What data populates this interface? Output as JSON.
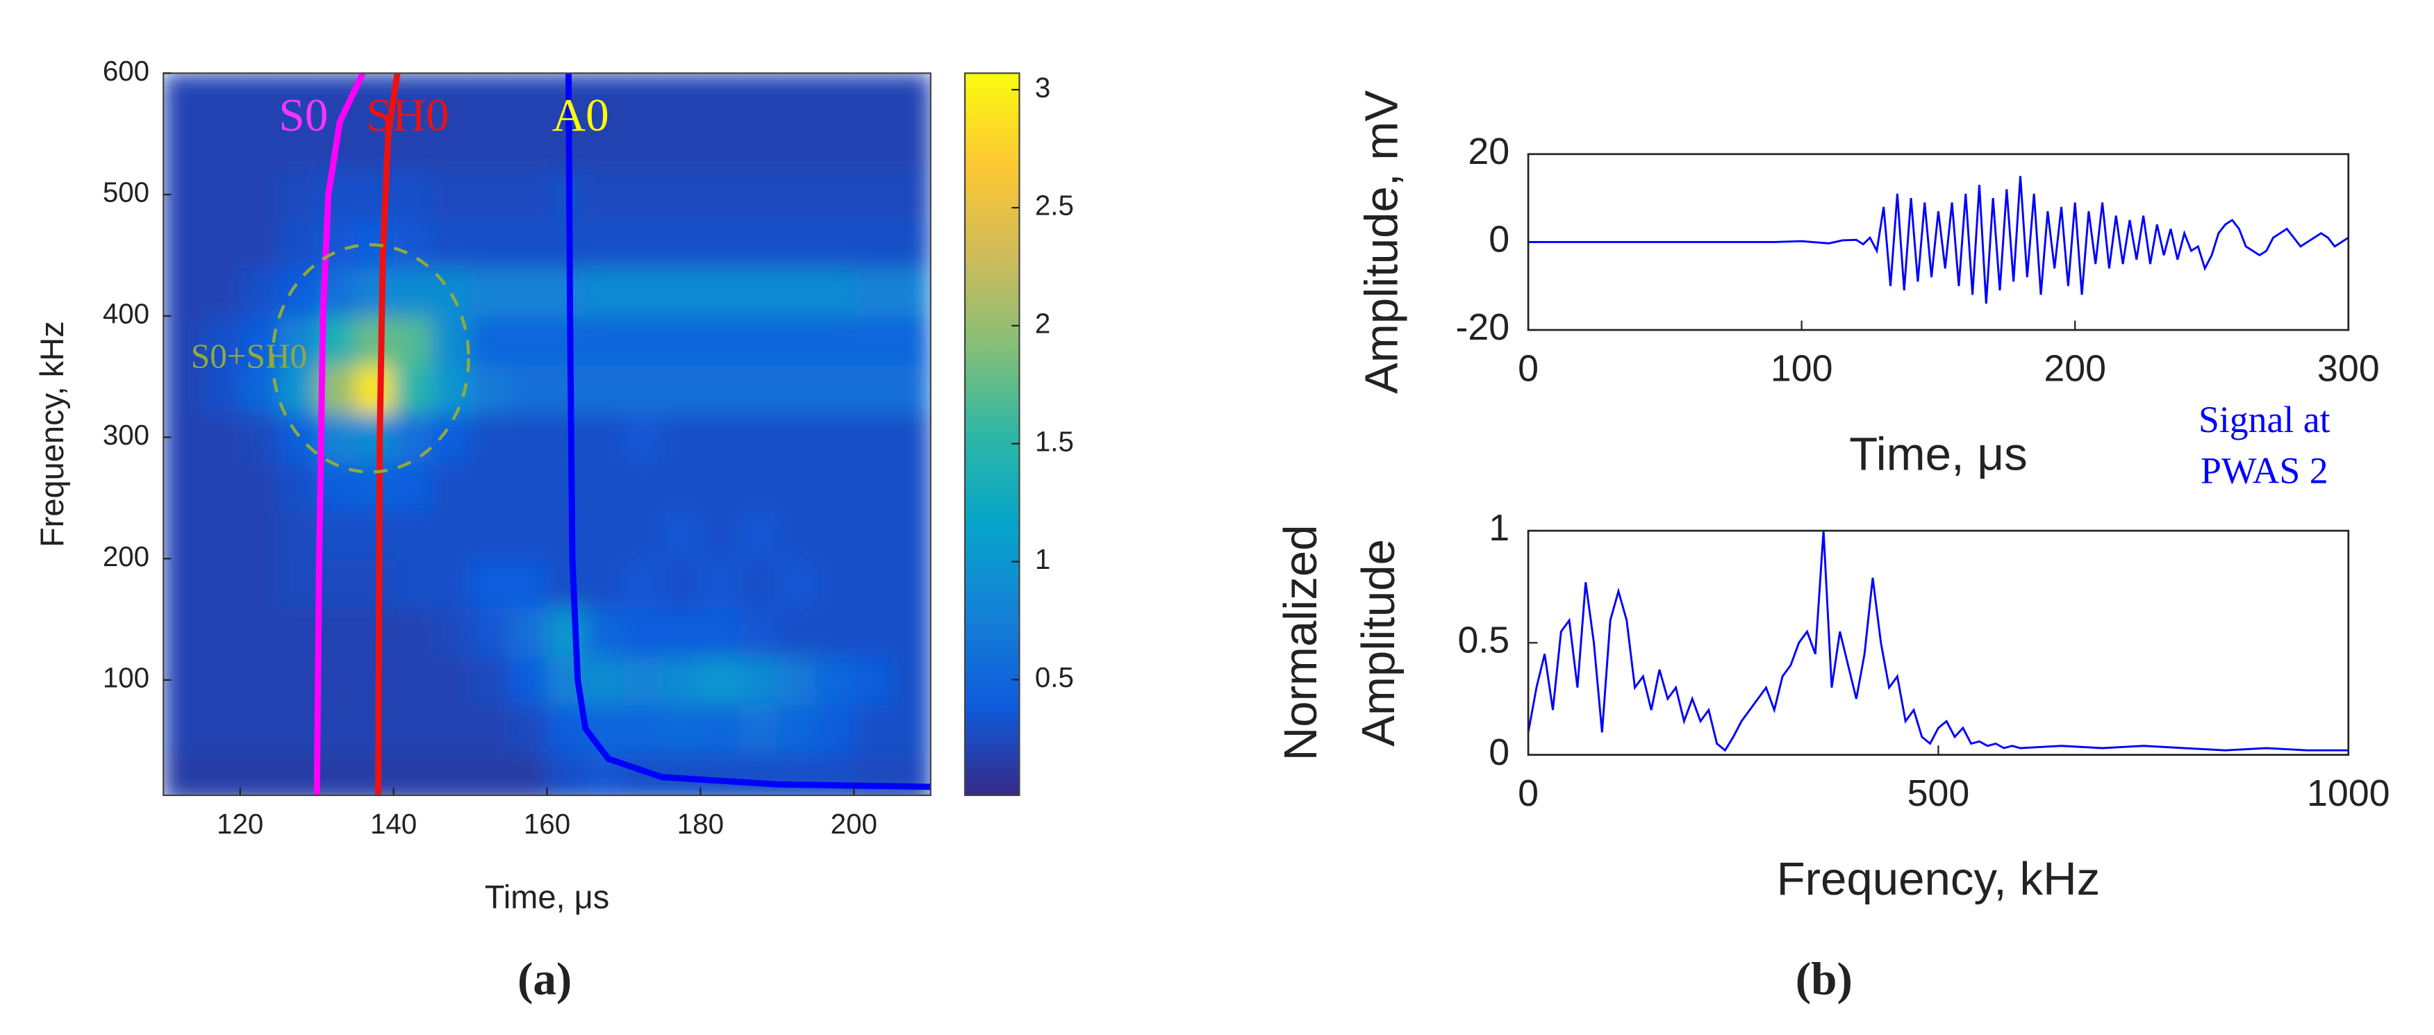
{
  "captions": [
    "(a)",
    "(b)"
  ],
  "chart_data": [
    {
      "type": "heatmap",
      "xlabel": "Time, μs",
      "ylabel": "Frequency, kHz",
      "xlim": [
        110,
        210
      ],
      "ylim": [
        5,
        600
      ],
      "xticks": [
        120,
        140,
        160,
        180,
        200
      ],
      "yticks": [
        100,
        200,
        300,
        400,
        500,
        600
      ],
      "x": [
        112.5,
        117.5,
        122.5,
        127.5,
        132.5,
        137.5,
        142.5,
        147.5,
        152.5,
        157.5,
        162.5,
        167.5,
        172.5,
        177.5,
        182.5,
        187.5,
        192.5,
        197.5,
        202.5,
        207.5
      ],
      "y": [
        20,
        60,
        100,
        140,
        180,
        220,
        260,
        300,
        340,
        380,
        420,
        460,
        500,
        540,
        580
      ],
      "z": [
        [
          0.15,
          0.15,
          0.15,
          0.15,
          0.15,
          0.15,
          0.15,
          0.15,
          0.15,
          0.15,
          0.3,
          0.35,
          0.3,
          0.3,
          0.3,
          0.3,
          0.3,
          0.3,
          0.25,
          0.25
        ],
        [
          0.2,
          0.2,
          0.2,
          0.2,
          0.2,
          0.2,
          0.2,
          0.2,
          0.2,
          0.25,
          0.4,
          0.5,
          0.5,
          0.55,
          0.5,
          0.6,
          0.5,
          0.4,
          0.3,
          0.3
        ],
        [
          0.2,
          0.2,
          0.2,
          0.2,
          0.2,
          0.2,
          0.2,
          0.2,
          0.25,
          0.4,
          0.8,
          0.9,
          0.8,
          0.9,
          1.0,
          0.9,
          0.7,
          0.5,
          0.4,
          0.3
        ],
        [
          0.2,
          0.2,
          0.2,
          0.2,
          0.2,
          0.2,
          0.2,
          0.25,
          0.35,
          0.6,
          1.0,
          0.5,
          0.4,
          0.4,
          0.4,
          0.35,
          0.3,
          0.3,
          0.3,
          0.3
        ],
        [
          0.2,
          0.2,
          0.2,
          0.25,
          0.25,
          0.25,
          0.3,
          0.3,
          0.4,
          0.4,
          0.3,
          0.3,
          0.35,
          0.3,
          0.35,
          0.3,
          0.35,
          0.3,
          0.3,
          0.3
        ],
        [
          0.2,
          0.2,
          0.2,
          0.25,
          0.3,
          0.3,
          0.3,
          0.3,
          0.3,
          0.3,
          0.3,
          0.3,
          0.3,
          0.35,
          0.3,
          0.35,
          0.3,
          0.3,
          0.3,
          0.3
        ],
        [
          0.2,
          0.2,
          0.2,
          0.3,
          0.4,
          0.45,
          0.4,
          0.3,
          0.3,
          0.3,
          0.3,
          0.3,
          0.3,
          0.3,
          0.3,
          0.3,
          0.3,
          0.3,
          0.3,
          0.3
        ],
        [
          0.2,
          0.2,
          0.25,
          0.4,
          0.8,
          0.9,
          0.6,
          0.4,
          0.3,
          0.3,
          0.3,
          0.3,
          0.35,
          0.3,
          0.3,
          0.3,
          0.3,
          0.3,
          0.3,
          0.3
        ],
        [
          0.2,
          0.3,
          0.5,
          1.0,
          2.0,
          2.9,
          1.5,
          1.0,
          0.7,
          0.6,
          0.6,
          0.6,
          0.6,
          0.6,
          0.6,
          0.6,
          0.6,
          0.6,
          0.6,
          0.6
        ],
        [
          0.2,
          0.3,
          0.4,
          0.8,
          1.4,
          1.8,
          1.7,
          0.9,
          0.5,
          0.5,
          0.5,
          0.5,
          0.5,
          0.5,
          0.5,
          0.5,
          0.5,
          0.5,
          0.5,
          0.5
        ],
        [
          0.2,
          0.2,
          0.3,
          0.4,
          0.6,
          0.8,
          0.9,
          0.9,
          0.8,
          0.8,
          0.8,
          0.9,
          0.9,
          0.9,
          0.9,
          0.9,
          0.9,
          0.9,
          0.8,
          0.8
        ],
        [
          0.2,
          0.2,
          0.2,
          0.3,
          0.35,
          0.4,
          0.35,
          0.3,
          0.3,
          0.3,
          0.3,
          0.3,
          0.3,
          0.3,
          0.3,
          0.3,
          0.3,
          0.3,
          0.3,
          0.3
        ],
        [
          0.2,
          0.2,
          0.2,
          0.25,
          0.3,
          0.3,
          0.3,
          0.25,
          0.25,
          0.25,
          0.3,
          0.25,
          0.25,
          0.25,
          0.25,
          0.25,
          0.25,
          0.25,
          0.25,
          0.25
        ],
        [
          0.2,
          0.2,
          0.2,
          0.2,
          0.2,
          0.2,
          0.2,
          0.2,
          0.2,
          0.2,
          0.2,
          0.2,
          0.2,
          0.2,
          0.2,
          0.2,
          0.2,
          0.2,
          0.2,
          0.2
        ],
        [
          0.2,
          0.2,
          0.2,
          0.2,
          0.2,
          0.2,
          0.2,
          0.2,
          0.2,
          0.2,
          0.2,
          0.2,
          0.2,
          0.2,
          0.2,
          0.2,
          0.2,
          0.2,
          0.2,
          0.2
        ]
      ],
      "clim": [
        0.01,
        3.07
      ],
      "cticks": [
        0.5,
        1,
        1.5,
        2,
        2.5,
        3
      ],
      "colormap": [
        "#352a87",
        "#0f5cdd",
        "#1481d6",
        "#06a4ca",
        "#2eb7a4",
        "#87bf77",
        "#d1bb59",
        "#fec832",
        "#f9fb0e"
      ],
      "curves": [
        {
          "name": "S0",
          "color": "#ff00ff",
          "x": [
            130,
            130.3,
            130.8,
            131.5,
            133,
            136
          ],
          "y": [
            5,
            200,
            400,
            500,
            560,
            600
          ]
        },
        {
          "name": "SH0",
          "color": "#ee1111",
          "x": [
            138,
            138.2,
            138.6,
            139.3,
            140.5
          ],
          "y": [
            5,
            300,
            450,
            550,
            600
          ]
        },
        {
          "name": "A0",
          "color": "#0000ff",
          "x": [
            210,
            190,
            175,
            168,
            165,
            164,
            163.3,
            163,
            162.8
          ],
          "y": [
            12,
            14,
            20,
            35,
            60,
            100,
            200,
            400,
            600
          ]
        }
      ],
      "label_colors": [
        "#ff33ff",
        "#ee1111",
        "#ffff00"
      ],
      "annotation": "S0+SH0",
      "annotation_color": "#8faa3c"
    },
    {
      "type": "line",
      "xlabel": "Time, μs",
      "ylabel": "Amplitude, mV",
      "color": "#0000ff",
      "xlim": [
        0,
        300
      ],
      "ylim": [
        -20,
        20
      ],
      "xticks": [
        0,
        100,
        200,
        300
      ],
      "yticks": [
        -20,
        0,
        20
      ],
      "x": [
        0,
        50,
        90,
        100,
        110,
        115,
        120,
        122.5,
        125,
        127.5,
        130,
        132.5,
        135,
        137.5,
        140,
        142.5,
        145,
        147.5,
        150,
        152.5,
        155,
        157.5,
        160,
        162.5,
        165,
        167.5,
        170,
        172.5,
        175,
        177.5,
        180,
        182.5,
        185,
        187.5,
        190,
        192.5,
        195,
        197.5,
        200,
        202.5,
        205,
        207.5,
        210,
        212.5,
        215,
        217.5,
        220,
        222.5,
        225,
        227.5,
        230,
        232.5,
        235,
        237.5,
        240,
        242.5,
        245,
        247.5,
        250,
        252.5,
        255,
        257.5,
        260,
        262.5,
        265,
        267.5,
        270,
        272.5,
        275,
        277.5,
        280,
        282.5,
        285,
        287.5,
        290,
        292.5,
        295,
        297.5,
        300
      ],
      "values": [
        0,
        0,
        0,
        0.2,
        -0.3,
        0.4,
        0.5,
        -0.5,
        1,
        -2,
        8,
        -10,
        11,
        -11,
        10,
        -9,
        9,
        -8,
        7,
        -6,
        9,
        -10,
        11,
        -12,
        13,
        -14,
        10,
        -11,
        12,
        -9,
        15,
        -8,
        11,
        -12,
        7,
        -6,
        8,
        -10,
        9,
        -12,
        7,
        -5,
        9,
        -6,
        6,
        -5,
        5,
        -4,
        6,
        -5,
        4,
        -3,
        3,
        -4,
        2,
        -2,
        -1,
        -6,
        -3,
        2,
        4,
        5,
        3,
        -1,
        -2,
        -3,
        -2,
        1,
        2,
        3,
        1,
        -1,
        0,
        1,
        2,
        1,
        -1,
        0,
        1
      ],
      "annotation": [
        "Signal at",
        "PWAS 2"
      ]
    },
    {
      "type": "line",
      "xlabel": "Frequency, kHz",
      "ylabel": [
        "Normalized",
        "Amplitude"
      ],
      "color": "#0000ff",
      "xlim": [
        0,
        1000
      ],
      "ylim": [
        0,
        1
      ],
      "xticks": [
        0,
        500,
        1000
      ],
      "yticks": [
        0,
        0.5,
        1
      ],
      "x": [
        0,
        10,
        20,
        30,
        40,
        50,
        60,
        70,
        80,
        90,
        100,
        110,
        120,
        130,
        140,
        150,
        160,
        170,
        180,
        190,
        200,
        210,
        220,
        230,
        240,
        250,
        260,
        270,
        280,
        290,
        300,
        310,
        320,
        330,
        340,
        350,
        360,
        370,
        380,
        390,
        400,
        410,
        420,
        430,
        440,
        450,
        460,
        470,
        480,
        490,
        500,
        510,
        520,
        530,
        540,
        550,
        560,
        570,
        580,
        590,
        600,
        650,
        700,
        750,
        800,
        850,
        900,
        950,
        1000
      ],
      "values": [
        0.1,
        0.3,
        0.45,
        0.2,
        0.55,
        0.6,
        0.3,
        0.77,
        0.5,
        0.1,
        0.6,
        0.73,
        0.6,
        0.3,
        0.35,
        0.2,
        0.38,
        0.25,
        0.3,
        0.15,
        0.25,
        0.15,
        0.2,
        0.05,
        0.02,
        0.08,
        0.15,
        0.2,
        0.25,
        0.3,
        0.2,
        0.35,
        0.4,
        0.5,
        0.55,
        0.45,
        1,
        0.3,
        0.55,
        0.4,
        0.25,
        0.45,
        0.79,
        0.5,
        0.3,
        0.35,
        0.15,
        0.2,
        0.08,
        0.05,
        0.12,
        0.15,
        0.08,
        0.12,
        0.05,
        0.06,
        0.04,
        0.05,
        0.03,
        0.04,
        0.03,
        0.04,
        0.03,
        0.04,
        0.03,
        0.02,
        0.03,
        0.02,
        0.02
      ]
    }
  ]
}
